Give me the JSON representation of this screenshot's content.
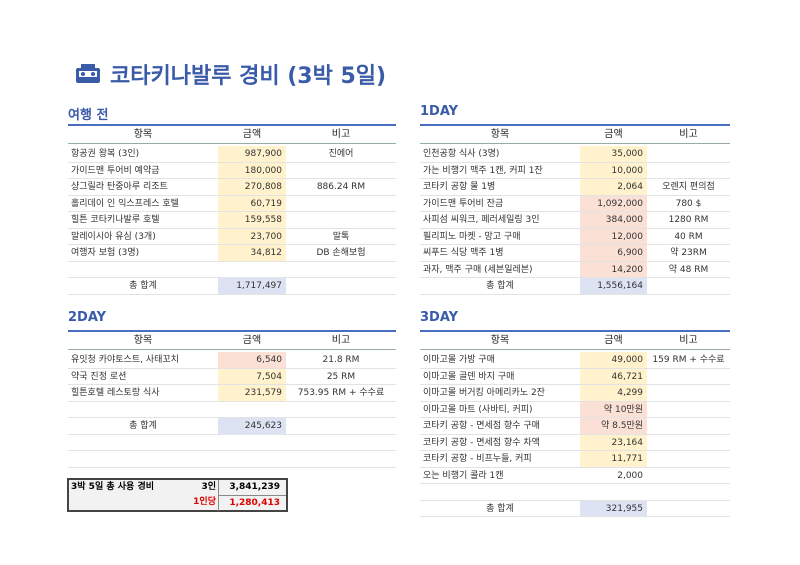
{
  "title": "코타키나발루 경비 (3박 5일)",
  "sections": [
    {
      "title": "여행 전",
      "headers": [
        "항목",
        "금액",
        "비고"
      ],
      "rows": [
        {
          "item": "항공권 왕복 (3인)",
          "amount": "987,900",
          "note": "진에어",
          "fill": "#fff2cc"
        },
        {
          "item": "가이드맨 투어비 예약금",
          "amount": "180,000",
          "note": null,
          "fill": "#fff2cc"
        },
        {
          "item": "샹그릴라 탄중아루 리조트",
          "amount": "270,808",
          "note": "886.24 RM",
          "fill": "#fff2cc"
        },
        {
          "item": "홀리데이 인 익스프레스 호텔",
          "amount": "60,719",
          "note": null,
          "fill": "#fff2cc"
        },
        {
          "item": "힐튼 코타키나발루 호텔",
          "amount": "159,558",
          "note": null,
          "fill": "#fff2cc"
        },
        {
          "item": "말레이시아 유심 (3개)",
          "amount": "23,700",
          "note": "말톡",
          "fill": "#fff2cc"
        },
        {
          "item": "여행자 보험 (3명)",
          "amount": "34,812",
          "note": "DB 손해보험",
          "fill": "#fff2cc"
        }
      ],
      "total_label": "총 합계",
      "total": "1,717,497"
    },
    {
      "title": "1DAY",
      "headers": [
        "항목",
        "금액",
        "비고"
      ],
      "rows": [
        {
          "item": "인천공항 식사 (3명)",
          "amount": "35,000",
          "note": null,
          "fill": "#fff2cc"
        },
        {
          "item": "가는 비행기 맥주 1캔, 커피 1잔",
          "amount": "10,000",
          "note": null,
          "fill": "#fff2cc"
        },
        {
          "item": "코타키 공항 물 1병",
          "amount": "2,064",
          "note": "오렌지 편의점",
          "fill": "#fff2cc"
        },
        {
          "item": "가이드맨 투어비 잔금",
          "amount": "1,092,000",
          "note": "780 $",
          "fill": "#fbe0d6"
        },
        {
          "item": "사피섬 씨워크, 페러세일링 3인",
          "amount": "384,000",
          "note": "1280 RM",
          "fill": "#fbe0d6"
        },
        {
          "item": "필리피노 마켓 - 망고 구매",
          "amount": "12,000",
          "note": "40 RM",
          "fill": "#fbe0d6"
        },
        {
          "item": "씨푸드 식당 맥주 1병",
          "amount": "6,900",
          "note": "약 23RM",
          "fill": "#fbe0d6"
        },
        {
          "item": "과자, 맥주 구매 (세븐일레븐)",
          "amount": "14,200",
          "note": "약 48 RM",
          "fill": "#fbe0d6"
        }
      ],
      "total_label": "총 합계",
      "total": "1,556,164"
    },
    {
      "title": "2DAY",
      "headers": [
        "항목",
        "금액",
        "비고"
      ],
      "rows": [
        {
          "item": "유잇청 카야토스트, 사태꼬치",
          "amount": "6,540",
          "note": "21.8 RM",
          "fill": "#fbe0d6"
        },
        {
          "item": "약국 진정 로션",
          "amount": "7,504",
          "note": "25 RM",
          "fill": "#fff2cc"
        },
        {
          "item": "힐튼호텔 레스토랑 식사",
          "amount": "231,579",
          "note": "753.95 RM + 수수료",
          "fill": "#fff2cc"
        }
      ],
      "total_label": "총 합계",
      "total": "245,623"
    },
    {
      "title": "3DAY",
      "headers": [
        "항목",
        "금액",
        "비고"
      ],
      "rows": [
        {
          "item": "이마고몰 가방 구매",
          "amount": "49,000",
          "note": "159 RM + 수수료",
          "fill": "#fff2cc"
        },
        {
          "item": "이마고몰 골덴 바지 구매",
          "amount": "46,721",
          "note": null,
          "fill": "#fff2cc"
        },
        {
          "item": "이마고몰 버거킹 아메리카노 2잔",
          "amount": "4,299",
          "note": null,
          "fill": "#fff2cc"
        },
        {
          "item": "이마고몰 마트 (사바티, 커피)",
          "amount": "약 10만원",
          "note": null,
          "fill": "#fbe0d6"
        },
        {
          "item": "코타키 공항 - 면세점 향수 구매",
          "amount": "약 8.5만원",
          "note": null,
          "fill": "#fbe0d6"
        },
        {
          "item": "코타키 공항 - 면세점 향수 차액",
          "amount": "23,164",
          "note": null,
          "fill": "#fff2cc"
        },
        {
          "item": "코타키 공항 - 비프누들, 커피",
          "amount": "11,771",
          "note": null,
          "fill": "#fff2cc"
        },
        {
          "item": "오는 비행기 콜라 1캔",
          "amount": "2,000",
          "note": null,
          "fill": null
        }
      ],
      "total_label": "총 합계",
      "total": "321,955"
    }
  ],
  "summary": {
    "label": "3박 5일 총 사용 경비",
    "people": "3인",
    "total": "3,841,239",
    "per_label": "1인당",
    "per_person": "1,280,413"
  }
}
